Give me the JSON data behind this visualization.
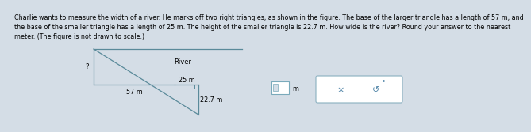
{
  "bg_color": "#d4dde6",
  "text_line1": "Charlie wants to measure the width of a river. He marks off two right triangles, as shown in the figure. The base of the larger triangle has a length of 57 m, and",
  "text_line2": "the base of the smaller triangle has a length of 25 m. The height of the smaller triangle is 22.7 m. How wide is the river? Round your answer to the nearest",
  "text_line3": "meter. (The figure is not drawn to scale.)",
  "text_fontsize": 5.8,
  "river_label": "River",
  "label_57": "57 m",
  "label_25": "25 m",
  "label_22": "22.7 m",
  "label_q": "?",
  "label_m": "m",
  "line_color": "#5a8a9a",
  "line_width": 0.9
}
